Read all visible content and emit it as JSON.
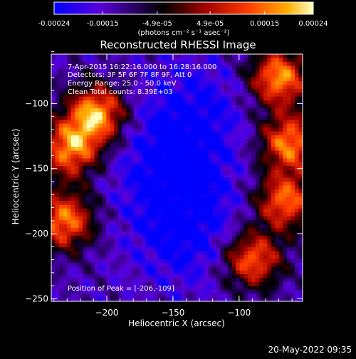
{
  "colorbar": {
    "tick_labels": [
      "-0.00024",
      "-0.00015",
      "-4.9e-05",
      "4.9e-05",
      "0.00015",
      "0.00024"
    ],
    "tick_values": [
      -0.00024,
      -0.00015,
      -4.9e-05,
      4.9e-05,
      0.00015,
      0.00024
    ],
    "range": [
      -0.00024,
      0.00024
    ],
    "unit_label": "(photons cm⁻² s⁻¹ asec⁻²)",
    "colormap": [
      "#0000ff",
      "#5a00d8",
      "#000000",
      "#a00000",
      "#ff3c00",
      "#ffb000",
      "#ffffc0"
    ]
  },
  "chart_data": {
    "type": "heatmap",
    "title": "Reconstructed RHESSI Image",
    "xlabel": "Heliocentric X (arcsec)",
    "ylabel": "Heliocentric Y (arcsec)",
    "xlim": [
      -242,
      -52
    ],
    "ylim": [
      -252,
      -62
    ],
    "x_ticks": [
      -200,
      -150,
      -100
    ],
    "x_tick_labels": [
      "−200",
      "−150",
      "−100"
    ],
    "y_ticks": [
      -250,
      -200,
      -150,
      -100
    ],
    "y_tick_labels": [
      "−250",
      "−200",
      "−150",
      "−100"
    ],
    "grid": false,
    "annotations": [
      "7-Apr-2015 16:22:16.000 to 16:28:16.000",
      "Detectors: 3F 5F 6F 7F 8F 9F, Att 0",
      "Energy Range: 25.0 - 50.0 keV",
      "Clean    Total counts: 8.39E+03"
    ],
    "peak_label": "Position of Peak = [-206,-109]",
    "peak_position": [
      -206,
      -109
    ],
    "bright_regions": [
      {
        "center": [
          -208,
          -108
        ],
        "level": 0.95
      },
      {
        "center": [
          -228,
          -135
        ],
        "level": 0.85
      },
      {
        "center": [
          -232,
          -190
        ],
        "level": 0.85
      },
      {
        "center": [
          -70,
          -80
        ],
        "level": 0.9
      },
      {
        "center": [
          -62,
          -130
        ],
        "level": 0.85
      },
      {
        "center": [
          -65,
          -175
        ],
        "level": 0.8
      },
      {
        "center": [
          -90,
          -220
        ],
        "level": 0.8
      }
    ],
    "dim_regions": [
      {
        "center": [
          -150,
          -150
        ],
        "level": -0.35
      },
      {
        "center": [
          -140,
          -200
        ],
        "level": -0.3
      },
      {
        "center": [
          -135,
          -105
        ],
        "level": -0.25
      }
    ]
  },
  "footer": {
    "timestamp": "20-May-2022 09:35"
  }
}
